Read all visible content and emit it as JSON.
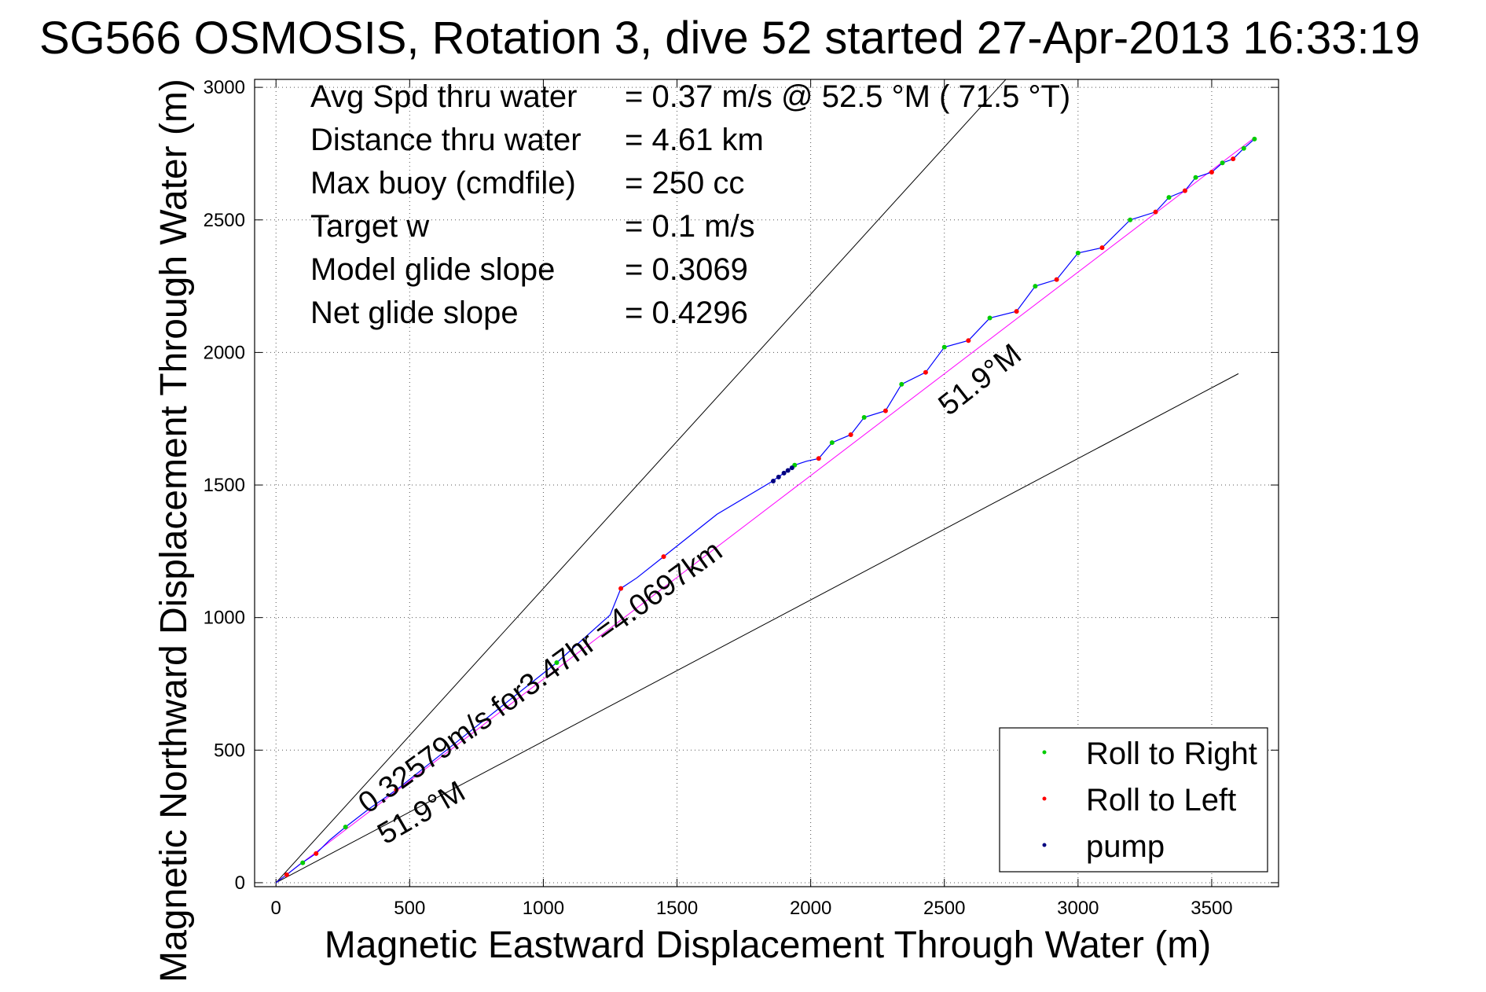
{
  "chart_data": {
    "type": "scatter",
    "title": "SG566 OSMOSIS, Rotation 3, dive 52 started 27-Apr-2013 16:33:19",
    "xlabel": "Magnetic Eastward Displacement Through Water (m)",
    "ylabel": "Magnetic Northward Displacement Through Water (m)",
    "xlim": [
      -80,
      3750
    ],
    "ylim": [
      -15,
      3030
    ],
    "xticks": [
      0,
      500,
      1000,
      1500,
      2000,
      2500,
      3000,
      3500
    ],
    "yticks": [
      0,
      500,
      1000,
      1500,
      2000,
      2500,
      3000
    ],
    "grid": true,
    "stats": [
      {
        "label": "Avg Spd thru water",
        "value": "=  0.37 m/s @  52.5 °M ( 71.5 °T)"
      },
      {
        "label": "Distance thru water",
        "value": "=  4.61 km"
      },
      {
        "label": "Max buoy (cmdfile)",
        "value": "= 250 cc"
      },
      {
        "label": "Target w",
        "value": "= 0.1 m/s"
      },
      {
        "label": "Model glide slope",
        "value": "= 0.3069"
      },
      {
        "label": "Net glide slope",
        "value": "= 0.4296"
      }
    ],
    "annotations": {
      "track_label": "0.32579m/s for3.47hr =4.0697km",
      "upper_heading": "51.9°M",
      "lower_heading": "51.9°M"
    },
    "reference_lines": [
      {
        "name": "upper-bound",
        "from": [
          0,
          0
        ],
        "to": [
          2730,
          3030
        ]
      },
      {
        "name": "lower-bound",
        "from": [
          0,
          0
        ],
        "to": [
          3600,
          1920
        ]
      },
      {
        "name": "net-track",
        "from": [
          0,
          0
        ],
        "to": [
          3660,
          2810
        ]
      }
    ],
    "track": {
      "color": "#0000ff",
      "points": [
        [
          0,
          0
        ],
        [
          40,
          30
        ],
        [
          90,
          70
        ],
        [
          150,
          110
        ],
        [
          200,
          160
        ],
        [
          260,
          210
        ],
        [
          350,
          280
        ],
        [
          450,
          350
        ],
        [
          550,
          430
        ],
        [
          650,
          510
        ],
        [
          750,
          590
        ],
        [
          850,
          670
        ],
        [
          950,
          750
        ],
        [
          1050,
          830
        ],
        [
          1150,
          920
        ],
        [
          1250,
          1010
        ],
        [
          1290,
          1110
        ],
        [
          1350,
          1150
        ],
        [
          1450,
          1230
        ],
        [
          1550,
          1310
        ],
        [
          1650,
          1390
        ],
        [
          1750,
          1450
        ],
        [
          1850,
          1510
        ],
        [
          1900,
          1545
        ],
        [
          1940,
          1575
        ],
        [
          1985,
          1590
        ],
        [
          2030,
          1600
        ],
        [
          2080,
          1660
        ],
        [
          2150,
          1690
        ],
        [
          2200,
          1755
        ],
        [
          2280,
          1780
        ],
        [
          2340,
          1880
        ],
        [
          2430,
          1925
        ],
        [
          2500,
          2020
        ],
        [
          2590,
          2045
        ],
        [
          2670,
          2130
        ],
        [
          2770,
          2155
        ],
        [
          2840,
          2250
        ],
        [
          2920,
          2275
        ],
        [
          3000,
          2375
        ],
        [
          3090,
          2395
        ],
        [
          3195,
          2500
        ],
        [
          3290,
          2530
        ],
        [
          3340,
          2585
        ],
        [
          3400,
          2610
        ],
        [
          3440,
          2660
        ],
        [
          3500,
          2680
        ],
        [
          3540,
          2715
        ],
        [
          3580,
          2730
        ],
        [
          3620,
          2770
        ],
        [
          3660,
          2805
        ]
      ]
    },
    "series": [
      {
        "name": "Roll to Right",
        "color": "#00cc00",
        "points": [
          [
            100,
            75
          ],
          [
            260,
            210
          ],
          [
            1050,
            830
          ],
          [
            1940,
            1575
          ],
          [
            2080,
            1660
          ],
          [
            2200,
            1755
          ],
          [
            2340,
            1880
          ],
          [
            2500,
            2020
          ],
          [
            2670,
            2130
          ],
          [
            2840,
            2250
          ],
          [
            3000,
            2375
          ],
          [
            3195,
            2500
          ],
          [
            3340,
            2585
          ],
          [
            3440,
            2660
          ],
          [
            3540,
            2715
          ],
          [
            3620,
            2770
          ],
          [
            3660,
            2805
          ]
        ]
      },
      {
        "name": "Roll to Left",
        "color": "#ff0000",
        "points": [
          [
            40,
            30
          ],
          [
            150,
            110
          ],
          [
            450,
            350
          ],
          [
            1290,
            1110
          ],
          [
            1450,
            1230
          ],
          [
            2030,
            1600
          ],
          [
            2150,
            1690
          ],
          [
            2280,
            1780
          ],
          [
            2430,
            1925
          ],
          [
            2590,
            2045
          ],
          [
            2770,
            2155
          ],
          [
            2920,
            2275
          ],
          [
            3090,
            2395
          ],
          [
            3290,
            2530
          ],
          [
            3400,
            2610
          ],
          [
            3500,
            2680
          ],
          [
            3580,
            2730
          ]
        ]
      },
      {
        "name": "pump",
        "color": "#000080",
        "points": [
          [
            1860,
            1515
          ],
          [
            1880,
            1530
          ],
          [
            1900,
            1545
          ],
          [
            1915,
            1555
          ],
          [
            1930,
            1565
          ]
        ]
      }
    ],
    "legend": {
      "position": "bottom-right",
      "entries": [
        "Roll to Right",
        "Roll to Left",
        "pump"
      ]
    }
  }
}
